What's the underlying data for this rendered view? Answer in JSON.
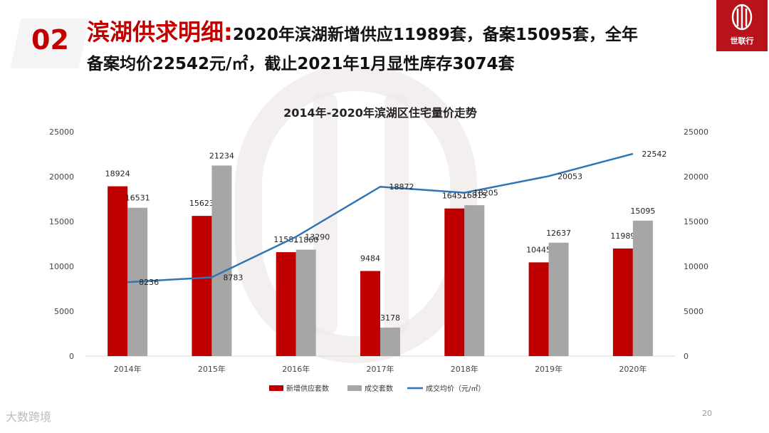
{
  "header": {
    "section_number": "02",
    "title_highlight": "滨湖供求明细:",
    "title_rest": "2020年滨湖新增供应11989套，备案15095套，全年",
    "title_line2": "备案均价22542元/㎡，截止2021年1月显性库存3074套"
  },
  "logo": {
    "text": "世联行"
  },
  "footer": {
    "source_text": "大数跨境",
    "page_number": "20"
  },
  "colors": {
    "supply": "#c00000",
    "sales": "#a6a6a6",
    "price": "#2e75b6",
    "accent": "#c00000"
  },
  "chart_data": {
    "type": "bar",
    "title": "2014年-2020年滨湖区住宅量价走势",
    "categories": [
      "2014年",
      "2015年",
      "2016年",
      "2017年",
      "2018年",
      "2019年",
      "2020年"
    ],
    "ylim": [
      0,
      25000
    ],
    "y2lim": [
      0,
      25000
    ],
    "yticks": [
      0,
      5000,
      10000,
      15000,
      20000,
      25000
    ],
    "grid": false,
    "legend_position": "bottom",
    "series": [
      {
        "name": "新增供应套数",
        "type": "bar",
        "values": [
          18924,
          15623,
          11581,
          9484,
          16451,
          10445,
          11989
        ]
      },
      {
        "name": "成交套数",
        "type": "bar",
        "values": [
          16531,
          21234,
          11860,
          3178,
          16815,
          12637,
          15095
        ]
      },
      {
        "name": "成交均价（元/㎡）",
        "type": "line",
        "axis": "right",
        "values": [
          8236,
          8783,
          13290,
          18872,
          18205,
          20053,
          22542
        ]
      }
    ]
  }
}
